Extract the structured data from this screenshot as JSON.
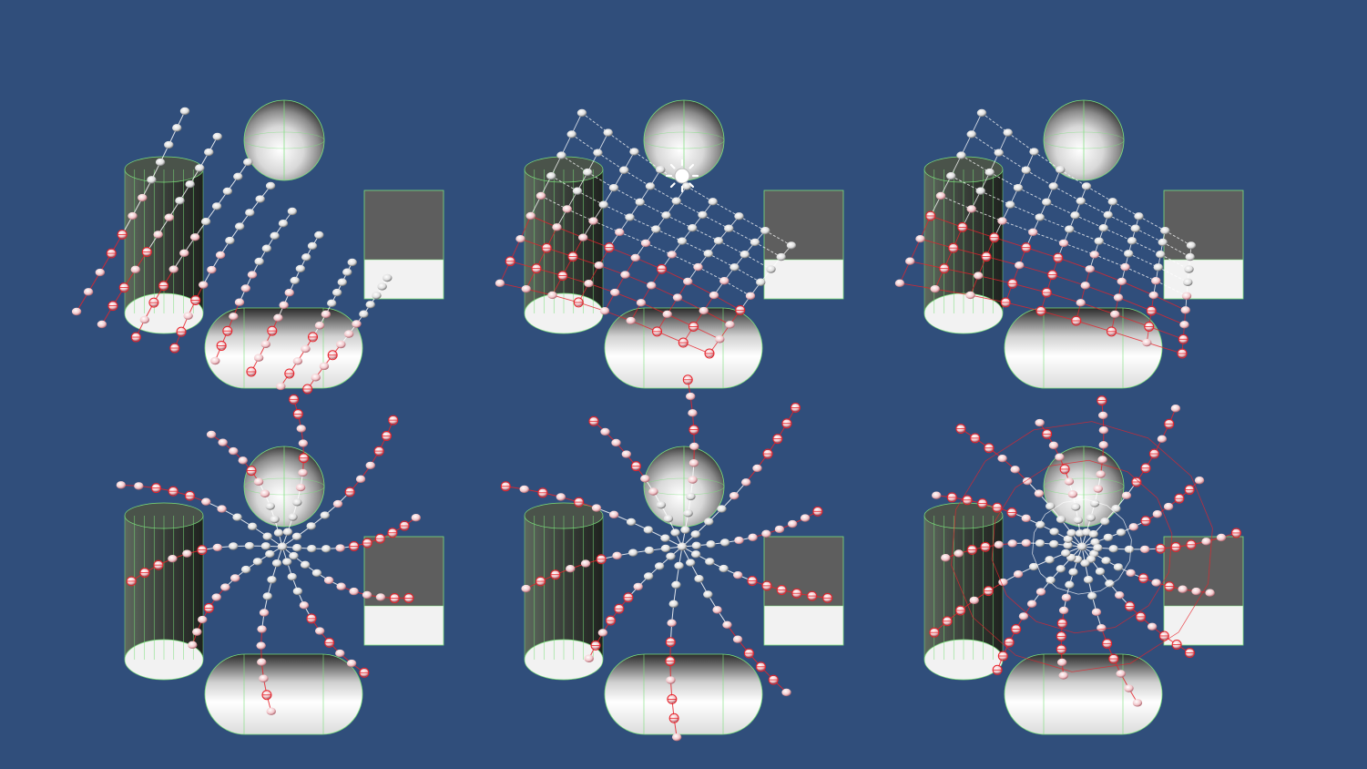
{
  "scene": {
    "background_color": "#304e7b",
    "panel_count": 6,
    "grid": {
      "rows": 2,
      "cols": 3
    },
    "colliders": [
      "sphere",
      "cylinder",
      "box",
      "capsule"
    ],
    "icons": [
      "directional-light-icon"
    ],
    "colors": {
      "wireframe": "#7be07b",
      "joint_gizmo": "#e8232b",
      "bone_link": "#ffffff",
      "collider_fill": "#f2f2f2",
      "collider_shadow": "#3c3c3c"
    }
  }
}
